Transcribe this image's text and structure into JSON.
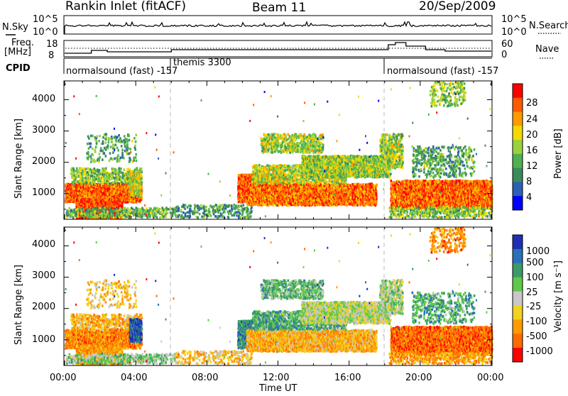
{
  "header": {
    "station": "Rankin Inlet (fitACF)",
    "beam": "Beam 11",
    "date": "20/Sep/2009"
  },
  "sky_panel": {
    "left_label": "N.Sky",
    "left_ticks": [
      "10^5",
      "10^0"
    ],
    "right_label": "N.Search",
    "right_ticks": [
      "10^5",
      "10^0"
    ]
  },
  "freq_panel": {
    "left_label_1": "Freq.",
    "left_label_2": "[MHz]",
    "left_ticks": [
      "18",
      "8"
    ],
    "right_label": "Nave",
    "right_ticks": [
      "60",
      "0"
    ]
  },
  "cpid_panel": {
    "label": "CPID",
    "modes": [
      {
        "label": "normalsound (fast) -157"
      },
      {
        "label": "themis 3300"
      },
      {
        "label": "normalsound (fast) -157"
      }
    ]
  },
  "power_panel": {
    "ylabel": "Slant Range [km]",
    "yticks": [
      "4000",
      "3000",
      "2000",
      "1000"
    ],
    "colorbar_label": "Power [dB]",
    "colorbar_ticks": [
      "28",
      "24",
      "20",
      "16",
      "12",
      "8",
      "4"
    ]
  },
  "velocity_panel": {
    "ylabel": "Slant Range [km]",
    "yticks": [
      "4000",
      "3000",
      "2000",
      "1000"
    ],
    "colorbar_label": "Velocity [m s⁻¹]",
    "colorbar_ticks": [
      "1000",
      "500",
      "100",
      "25",
      "-25",
      "-100",
      "-500",
      "-1000"
    ]
  },
  "xaxis": {
    "label": "Time UT",
    "ticks": [
      "00:00",
      "04:00",
      "08:00",
      "12:00",
      "16:00",
      "20:00",
      "00:00"
    ]
  },
  "chart_data": {
    "type": "heatmap",
    "x_range_hours": [
      0,
      24
    ],
    "y_range_km": [
      180,
      4600
    ],
    "mode_change_hours": [
      6,
      18
    ],
    "power_colors": [
      "#0000ff",
      "#2d5fb4",
      "#3a8a5c",
      "#4fb04f",
      "#9ad23c",
      "#f5d800",
      "#ff9a00",
      "#ff5a00",
      "#ff0000"
    ],
    "velocity_colors": [
      "#1e2fb5",
      "#2a70b8",
      "#3a9a6a",
      "#5fc84a",
      "#c8c8c8",
      "#f2d21e",
      "#ff9a00",
      "#ff6a00",
      "#ff0000"
    ],
    "regions": [
      {
        "t": [
          0,
          4.3
        ],
        "r": [
          700,
          1300
        ],
        "pw": 0.85,
        "vel": -0.6,
        "dens": 0.85
      },
      {
        "t": [
          0.6,
          3.2
        ],
        "r": [
          180,
          800
        ],
        "pw": 0.92,
        "vel": -0.5,
        "dens": 0.75
      },
      {
        "t": [
          0.3,
          4.3
        ],
        "r": [
          1300,
          1800
        ],
        "pw": 0.45,
        "vel": -0.4,
        "dens": 0.35
      },
      {
        "t": [
          1.2,
          4.0
        ],
        "r": [
          2000,
          2900
        ],
        "pw": 0.35,
        "vel": -0.3,
        "dens": 0.12
      },
      {
        "t": [
          3.6,
          4.3
        ],
        "r": [
          900,
          1650
        ],
        "pw": 0.55,
        "vel": 0.85,
        "dens": 0.7
      },
      {
        "t": [
          0,
          6.2
        ],
        "r": [
          200,
          520
        ],
        "pw": 0.4,
        "vel": 0.2,
        "dens": 0.35
      },
      {
        "t": [
          6.2,
          10.5
        ],
        "r": [
          200,
          620
        ],
        "pw": 0.3,
        "vel": -0.3,
        "dens": 0.2
      },
      {
        "t": [
          9.7,
          12.5
        ],
        "r": [
          700,
          1600
        ],
        "pw": 0.88,
        "vel": 0.6,
        "dens": 0.75
      },
      {
        "t": [
          10.2,
          17.5
        ],
        "r": [
          600,
          1300
        ],
        "pw": 0.82,
        "vel": -0.4,
        "dens": 0.72
      },
      {
        "t": [
          10.5,
          15.8
        ],
        "r": [
          1300,
          1900
        ],
        "pw": 0.55,
        "vel": 0.4,
        "dens": 0.45
      },
      {
        "t": [
          11.0,
          14.5
        ],
        "r": [
          2300,
          2900
        ],
        "pw": 0.5,
        "vel": 0.3,
        "dens": 0.4
      },
      {
        "t": [
          13.3,
          18.3
        ],
        "r": [
          1500,
          2200
        ],
        "pw": 0.48,
        "vel": 0.0,
        "dens": 0.6
      },
      {
        "t": [
          17.7,
          19.0
        ],
        "r": [
          1800,
          2900
        ],
        "pw": 0.5,
        "vel": 0.1,
        "dens": 0.45
      },
      {
        "t": [
          18.3,
          24
        ],
        "r": [
          500,
          1400
        ],
        "pw": 0.85,
        "vel": -0.7,
        "dens": 0.8
      },
      {
        "t": [
          18.2,
          24
        ],
        "r": [
          200,
          550
        ],
        "pw": 0.45,
        "vel": -0.5,
        "dens": 0.3
      },
      {
        "t": [
          19.5,
          23.0
        ],
        "r": [
          1500,
          2500
        ],
        "pw": 0.35,
        "vel": 0.4,
        "dens": 0.2
      },
      {
        "t": [
          20.5,
          22.5
        ],
        "r": [
          3800,
          4600
        ],
        "pw": 0.45,
        "vel": -0.6,
        "dens": 0.18
      }
    ]
  }
}
